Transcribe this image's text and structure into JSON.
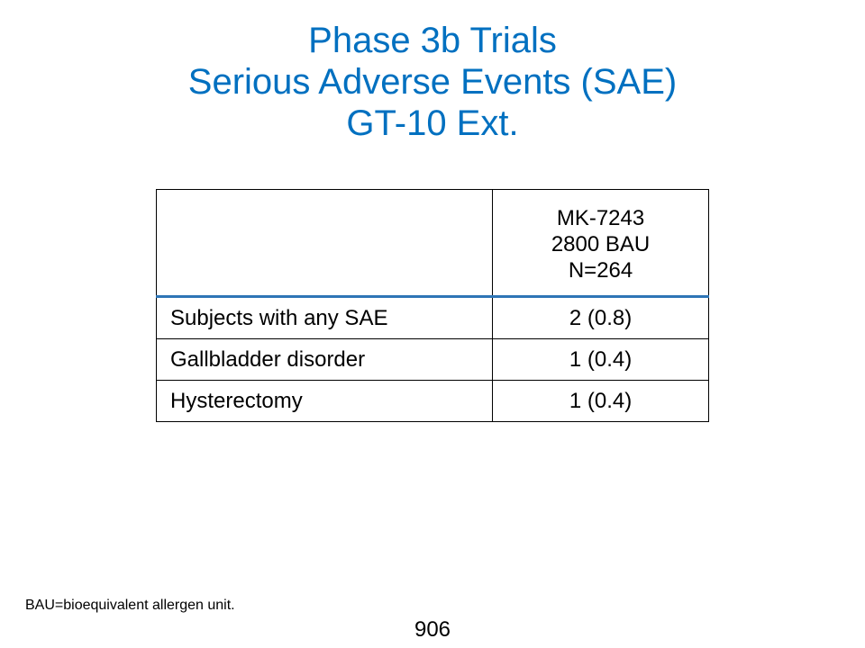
{
  "title": {
    "line1": "Phase 3b Trials",
    "line2": "Serious Adverse Events (SAE)",
    "line3": "GT-10 Ext."
  },
  "table": {
    "header": {
      "line1": "MK-7243",
      "line2": "2800 BAU",
      "line3": "N=264"
    },
    "rows": [
      {
        "label": "Subjects with any SAE",
        "value": "2 (0.8)"
      },
      {
        "label": "Gallbladder disorder",
        "value": "1 (0.4)"
      },
      {
        "label": "Hysterectomy",
        "value": "1 (0.4)"
      }
    ]
  },
  "footnote": "BAU=bioequivalent allergen unit.",
  "page_number": "906",
  "colors": {
    "title": "#0070c0",
    "header_rule": "#2e75b6"
  }
}
